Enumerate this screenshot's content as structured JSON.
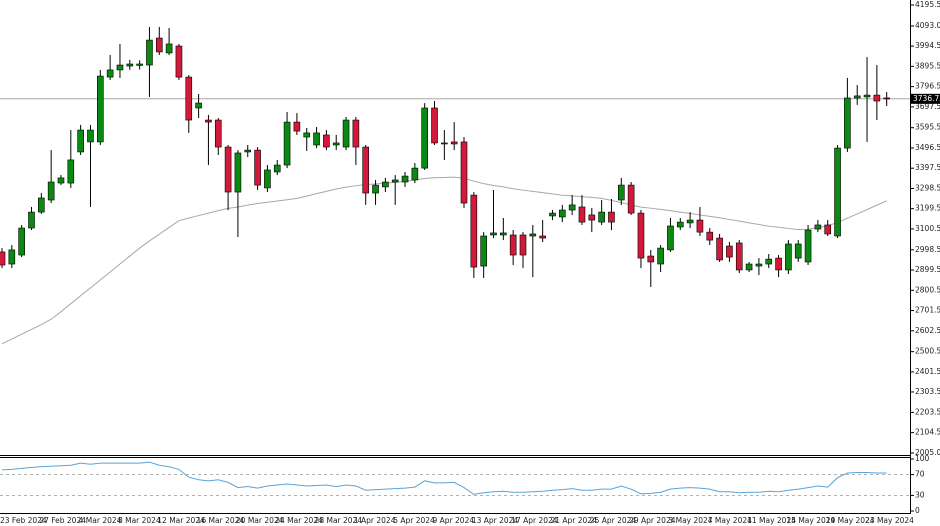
{
  "chart_data": [
    {
      "type": "candlestick",
      "categories": [
        "23 Feb 2024",
        null,
        null,
        null,
        "27 Feb 2024",
        null,
        null,
        null,
        "4 Mar 2024",
        null,
        null,
        null,
        "8 Mar 2024",
        null,
        null,
        null,
        "12 Mar 2024",
        null,
        null,
        null,
        "16 Mar 2024",
        null,
        null,
        null,
        "20 Mar 2024",
        null,
        null,
        null,
        "24 Mar 2024",
        null,
        null,
        null,
        "28 Mar 2024",
        null,
        null,
        null,
        "1 Apr 2024",
        null,
        null,
        null,
        "5 Apr 2024",
        null,
        null,
        null,
        "9 Apr 2024",
        null,
        null,
        null,
        "13 Apr 2024",
        null,
        null,
        null,
        "17 Apr 2024",
        null,
        null,
        null,
        "21 Apr 2024",
        null,
        null,
        null,
        "25 Apr 2024",
        null,
        null,
        null,
        "29 Apr 2024",
        null,
        null,
        null,
        "3 May 2024",
        null,
        null,
        null,
        "7 May 2024",
        null,
        null,
        null,
        "11 May 2024",
        null,
        null,
        null,
        "15 May 2024",
        null,
        null,
        null,
        "19 May 2024",
        null,
        null,
        null,
        "23 May 2024",
        null,
        null
      ],
      "open": [
        2988,
        2929,
        2973,
        3105,
        3183,
        3242,
        3325,
        3325,
        3477,
        3526,
        3526,
        3843,
        3878,
        3897,
        3900,
        3902,
        4034,
        3961,
        3995,
        3843,
        3692,
        3633,
        3633,
        3501,
        3281,
        3477,
        3486,
        3301,
        3379,
        3413,
        3623,
        3550,
        3511,
        3560,
        3511,
        3501,
        3633,
        3501,
        3276,
        3306,
        3330,
        3330,
        3340,
        3398,
        3692,
        3516,
        3526,
        3526,
        3266,
        2919,
        3071,
        3071,
        3071,
        3071,
        3066,
        3066,
        3164,
        3159,
        3193,
        3208,
        3169,
        3134,
        3183,
        3242,
        3315,
        3178,
        2968,
        2929,
        2998,
        3110,
        3130,
        3144,
        3085,
        3056,
        3017,
        3032,
        2900,
        2919,
        2929,
        2958,
        2900,
        2958,
        2939,
        3100,
        3120,
        3066,
        3496,
        3741,
        3746,
        3755,
        3741
      ],
      "high": [
        3007,
        3022,
        3120,
        3208,
        3276,
        3486,
        3364,
        3584,
        3609,
        3609,
        3878,
        3951,
        4005,
        3927,
        3925,
        4088,
        4088,
        4083,
        4005,
        3853,
        3760,
        3658,
        3643,
        3511,
        3486,
        3511,
        3501,
        3413,
        3438,
        3672,
        3667,
        3594,
        3599,
        3584,
        3560,
        3648,
        3648,
        3511,
        3340,
        3350,
        3364,
        3379,
        3423,
        3716,
        3726,
        3584,
        3623,
        3550,
        3281,
        3085,
        3291,
        3154,
        3095,
        3085,
        3120,
        3144,
        3193,
        3218,
        3266,
        3266,
        3203,
        3242,
        3247,
        3350,
        3330,
        3193,
        2998,
        3022,
        3154,
        3154,
        3183,
        3208,
        3105,
        3076,
        3037,
        3046,
        2939,
        2958,
        2978,
        2973,
        3046,
        3046,
        3120,
        3144,
        3144,
        3511,
        3839,
        3804,
        3941,
        3902,
        3770
      ],
      "low": [
        2909,
        2909,
        2963,
        3095,
        3174,
        3227,
        3315,
        3301,
        3462,
        3208,
        3511,
        3829,
        3839,
        3878,
        3880,
        3746,
        3951,
        3951,
        3829,
        3570,
        3643,
        3413,
        3462,
        3193,
        3061,
        3452,
        3291,
        3281,
        3364,
        3398,
        3560,
        3482,
        3496,
        3486,
        3486,
        3486,
        3413,
        3218,
        3218,
        3281,
        3218,
        3306,
        3325,
        3389,
        3511,
        3438,
        3486,
        3203,
        2861,
        2861,
        3056,
        3046,
        2924,
        2909,
        2865,
        3037,
        3144,
        3134,
        3169,
        3120,
        3085,
        3120,
        3095,
        3218,
        3169,
        2909,
        2817,
        2890,
        2988,
        3095,
        3105,
        3066,
        3022,
        2939,
        2939,
        2885,
        2890,
        2875,
        2909,
        2865,
        2880,
        2939,
        2924,
        3085,
        3066,
        3056,
        3477,
        3707,
        3526,
        3633,
        3702
      ],
      "close": [
        2924,
        2998,
        3105,
        3183,
        3252,
        3330,
        3350,
        3438,
        3584,
        3584,
        3848,
        3878,
        3902,
        3907,
        3907,
        4024,
        3966,
        4005,
        3843,
        3633,
        3716,
        3623,
        3501,
        3281,
        3472,
        3486,
        3315,
        3389,
        3413,
        3623,
        3579,
        3570,
        3570,
        3501,
        3521,
        3633,
        3501,
        3276,
        3315,
        3330,
        3340,
        3359,
        3398,
        3692,
        3521,
        3521,
        3516,
        3227,
        2914,
        3066,
        3081,
        3081,
        2973,
        2973,
        3076,
        3056,
        3178,
        3193,
        3218,
        3134,
        3144,
        3183,
        3134,
        3315,
        3178,
        2958,
        2939,
        3007,
        3115,
        3134,
        3144,
        3085,
        3046,
        2949,
        2963,
        2900,
        2929,
        2929,
        2953,
        2900,
        3027,
        3027,
        3095,
        3120,
        3076,
        3496,
        3741,
        3751,
        3755,
        3726,
        3736.75
      ],
      "up_color": "#0b8a12",
      "down_color": "#d2193a",
      "ma": {
        "color": "#a8a8a8",
        "values": [
          2538,
          2562,
          2586,
          2609,
          2633,
          2659,
          2696,
          2735,
          2774,
          2812,
          2851,
          2890,
          2929,
          2968,
          3007,
          3042,
          3075,
          3108,
          3141,
          3154,
          3166,
          3178,
          3190,
          3201,
          3208,
          3217,
          3225,
          3231,
          3237,
          3243,
          3250,
          3261,
          3273,
          3284,
          3296,
          3305,
          3312,
          3317,
          3321,
          3324,
          3328,
          3333,
          3340,
          3347,
          3351,
          3352,
          3354,
          3349,
          3334,
          3322,
          3313,
          3306,
          3297,
          3290,
          3284,
          3278,
          3272,
          3265,
          3262,
          3258,
          3255,
          3250,
          3240,
          3229,
          3218,
          3207,
          3202,
          3196,
          3190,
          3183,
          3176,
          3169,
          3162,
          3155,
          3147,
          3139,
          3130,
          3122,
          3114,
          3109,
          3103,
          3097,
          3099,
          3107,
          3116,
          3132,
          3153,
          3174,
          3195,
          3217,
          3238
        ]
      },
      "last_price": 3736.75,
      "ylim": [
        2005,
        4195.5
      ],
      "yticks": [
        {
          "value": 4195.5,
          "label": "4195.50"
        },
        {
          "value": 4093,
          "label": "4093.00"
        },
        {
          "value": 3994.5,
          "label": "3994.50"
        },
        {
          "value": 3895.5,
          "label": "3895.50"
        },
        {
          "value": 3796.5,
          "label": "3796.50"
        },
        {
          "value": 3697.5,
          "label": "3697.50"
        },
        {
          "value": 3595.5,
          "label": "3595.50"
        },
        {
          "value": 3496.5,
          "label": "3496.50"
        },
        {
          "value": 3397.5,
          "label": "3397.50"
        },
        {
          "value": 3298.5,
          "label": "3298.50"
        },
        {
          "value": 3199.5,
          "label": "3199.50"
        },
        {
          "value": 3100.5,
          "label": "3100.50"
        },
        {
          "value": 2998.5,
          "label": "2998.50"
        },
        {
          "value": 2899.5,
          "label": "2899.50"
        },
        {
          "value": 2800.5,
          "label": "2800.50"
        },
        {
          "value": 2701.5,
          "label": "2701.50"
        },
        {
          "value": 2602.5,
          "label": "2602.50"
        },
        {
          "value": 2500.5,
          "label": "2500.50"
        },
        {
          "value": 2401.5,
          "label": "2401.50"
        },
        {
          "value": 2303.5,
          "label": "2303.50"
        },
        {
          "value": 2203.5,
          "label": "2203.50"
        },
        {
          "value": 2104.5,
          "label": "2104.50"
        },
        {
          "value": 2005,
          "label": "2005.00"
        }
      ]
    },
    {
      "type": "line",
      "color": "#5aa3d6",
      "values": [
        79,
        80,
        82,
        84,
        85,
        86,
        87,
        88,
        92,
        90,
        92,
        92,
        92,
        92,
        92,
        94,
        88,
        85,
        80,
        65,
        60,
        58,
        60,
        55,
        45,
        47,
        44,
        48,
        50,
        52,
        50,
        48,
        49,
        50,
        47,
        50,
        48,
        40,
        41,
        42,
        43,
        44,
        46,
        58,
        54,
        54,
        55,
        45,
        32,
        35,
        37,
        38,
        36,
        36,
        37,
        38,
        40,
        41,
        43,
        40,
        40,
        42,
        42,
        48,
        42,
        33,
        34,
        36,
        42,
        44,
        45,
        44,
        42,
        37,
        37,
        35,
        36,
        36,
        38,
        37,
        40,
        42,
        45,
        48,
        46,
        64,
        73,
        74,
        74,
        73,
        73
      ],
      "ylim": [
        0,
        100
      ],
      "yticks": [
        100,
        70,
        30,
        0
      ],
      "dashed_levels": [
        70,
        30
      ]
    }
  ]
}
